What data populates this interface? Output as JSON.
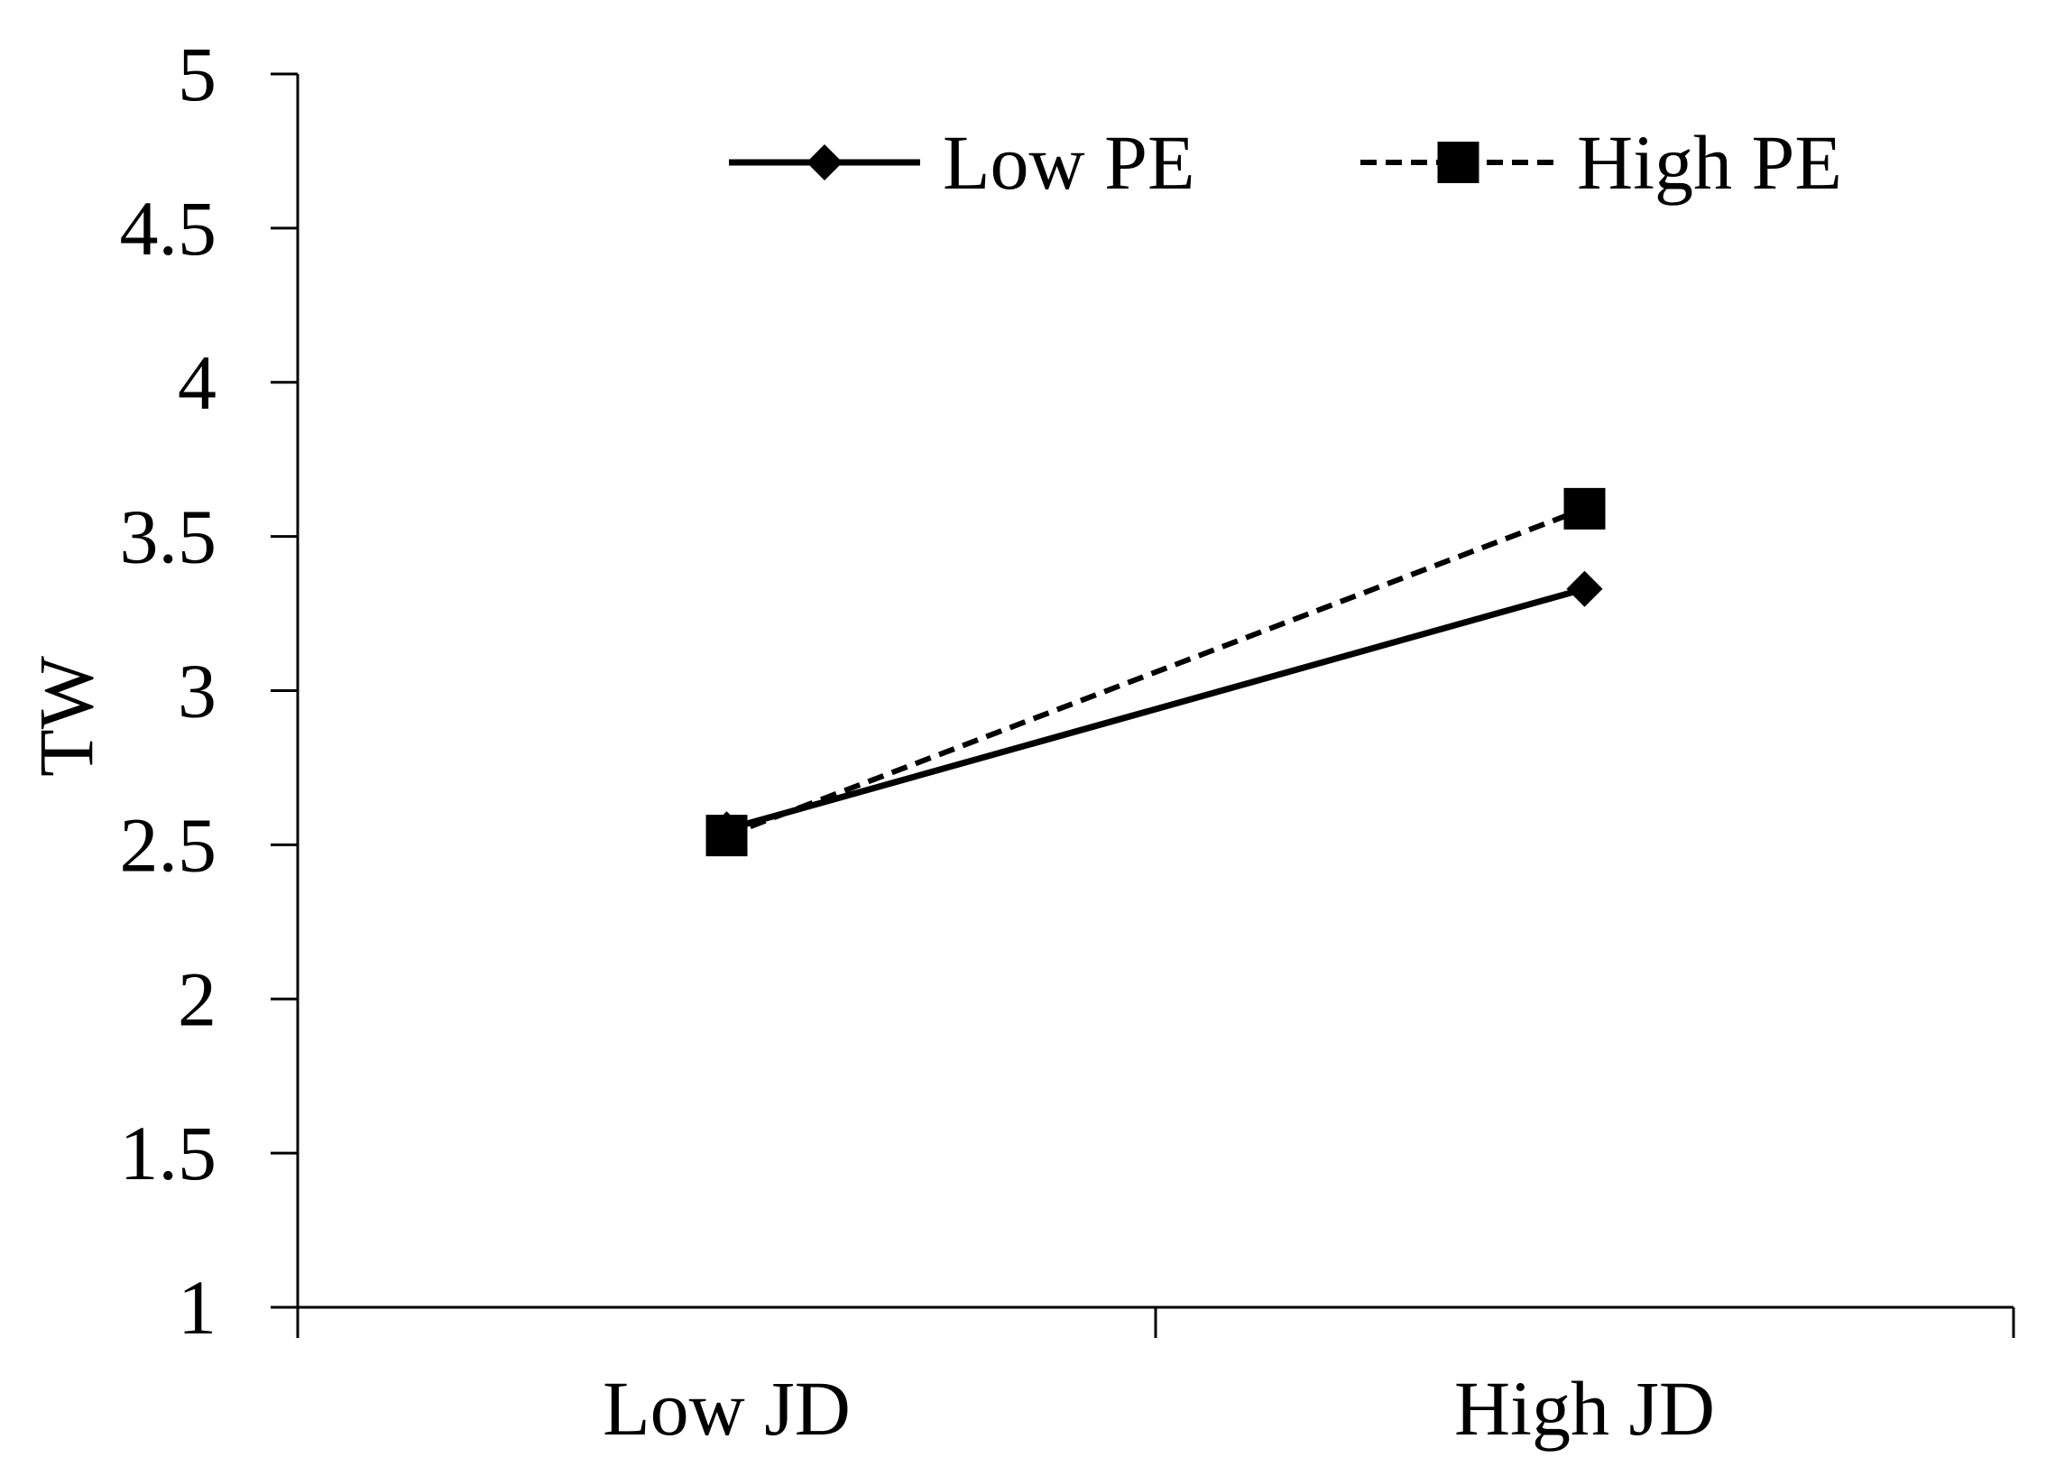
{
  "chart_data": {
    "type": "line",
    "title": "",
    "xlabel": "",
    "ylabel": "TW",
    "categories": [
      "Low JD",
      "High JD"
    ],
    "ylim": [
      1,
      5
    ],
    "yticks": [
      "1",
      "1.5",
      "2",
      "2.5",
      "3",
      "3.5",
      "4",
      "4.5",
      "5"
    ],
    "grid": false,
    "legend_position": "top",
    "series": [
      {
        "name": "Low PE",
        "values": [
          2.55,
          3.33
        ],
        "line_style": "solid",
        "marker": "diamond",
        "color": "#000000"
      },
      {
        "name": "High PE",
        "values": [
          2.53,
          3.59
        ],
        "line_style": "dashed",
        "marker": "square",
        "color": "#000000"
      }
    ]
  }
}
